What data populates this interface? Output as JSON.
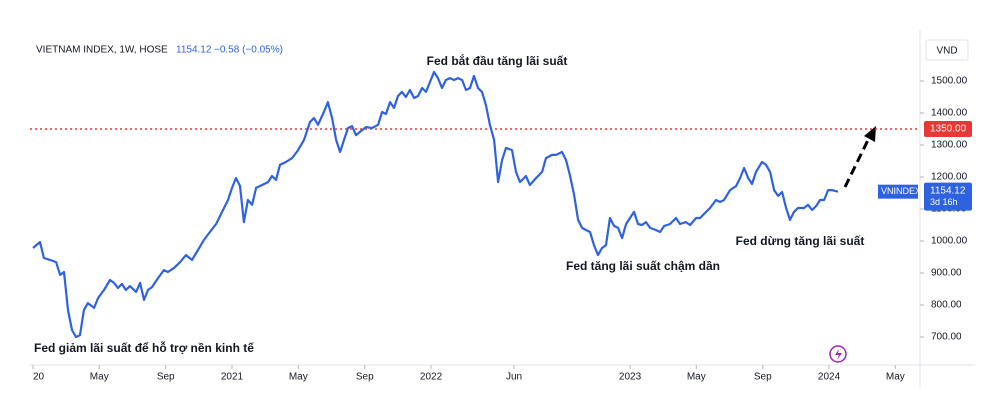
{
  "chart_data": {
    "type": "line",
    "header": {
      "symbol": "VIETNAM INDEX, 1W, HOSE",
      "last": "1154.12",
      "change": "−0.58 (−0.05%)"
    },
    "currency": "VND",
    "annotations": [
      "Fed giảm lãi suất để hỗ trợ nền kinh tế",
      "Fed bắt đầu tăng lãi suất",
      "Fed tăng lãi suất chậm dần",
      "Fed dừng tăng lãi suất"
    ],
    "reference_line": {
      "value": 1350,
      "label": "1350.00",
      "color": "#e53935"
    },
    "price_badge": {
      "name": "VNINDEX",
      "countdown": "3d 16h"
    },
    "xlim": [
      2019.985,
      2024.457
    ],
    "ylim": [
      612.5,
      1628.1
    ],
    "xticks": [
      {
        "value": 2020.0,
        "label": "20"
      },
      {
        "value": 2020.333,
        "label": "May"
      },
      {
        "value": 2020.667,
        "label": "Sep"
      },
      2021,
      {
        "value": 2021.333,
        "label": "May"
      },
      {
        "value": 2021.667,
        "label": "Sep"
      },
      2022,
      {
        "value": 2022.417,
        "label": "Jun"
      },
      2023,
      {
        "value": 2023.333,
        "label": "May"
      },
      {
        "value": 2023.667,
        "label": "Sep"
      },
      2024,
      {
        "value": 2024.333,
        "label": "May"
      }
    ],
    "yticks": [
      {
        "value": 700,
        "label": "700.00"
      },
      {
        "value": 800,
        "label": "800.00"
      },
      {
        "value": 900,
        "label": "900.00"
      },
      {
        "value": 1000,
        "label": "1000.00"
      },
      {
        "value": 1100,
        "label": "1100.00"
      },
      {
        "value": 1200,
        "label": "1200.00"
      },
      {
        "value": 1300,
        "label": "1300.00"
      },
      {
        "value": 1400,
        "label": "1400.00"
      },
      {
        "value": 1500,
        "label": "1500.00"
      }
    ],
    "x": [
      2020.0,
      2020.035,
      2020.055,
      2020.085,
      2020.116,
      2020.136,
      2020.156,
      2020.176,
      2020.196,
      2020.216,
      2020.236,
      2020.256,
      2020.276,
      2020.307,
      2020.327,
      2020.357,
      2020.387,
      2020.407,
      2020.427,
      2020.447,
      2020.467,
      2020.487,
      2020.518,
      2020.538,
      2020.558,
      2020.578,
      2020.598,
      2020.628,
      2020.658,
      2020.678,
      2020.709,
      2020.739,
      2020.769,
      2020.799,
      2020.829,
      2020.859,
      2020.889,
      2020.92,
      2020.95,
      2020.98,
      2021.0,
      2021.02,
      2021.04,
      2021.06,
      2021.08,
      2021.101,
      2021.121,
      2021.151,
      2021.181,
      2021.201,
      2021.221,
      2021.241,
      2021.271,
      2021.302,
      2021.332,
      2021.362,
      2021.392,
      2021.412,
      2021.432,
      2021.462,
      2021.482,
      2021.503,
      2021.523,
      2021.543,
      2021.563,
      2021.583,
      2021.603,
      2021.623,
      2021.643,
      2021.673,
      2021.704,
      2021.734,
      2021.754,
      2021.774,
      2021.794,
      2021.814,
      2021.834,
      2021.854,
      2021.874,
      2021.894,
      2021.915,
      2021.935,
      2021.955,
      2021.975,
      2021.995,
      2022.015,
      2022.035,
      2022.055,
      2022.075,
      2022.095,
      2022.116,
      2022.136,
      2022.156,
      2022.176,
      2022.196,
      2022.216,
      2022.236,
      2022.256,
      2022.276,
      2022.296,
      2022.317,
      2022.337,
      2022.357,
      2022.377,
      2022.407,
      2022.427,
      2022.447,
      2022.477,
      2022.497,
      2022.528,
      2022.558,
      2022.578,
      2022.608,
      2022.628,
      2022.658,
      2022.678,
      2022.698,
      2022.719,
      2022.739,
      2022.759,
      2022.779,
      2022.799,
      2022.819,
      2022.839,
      2022.859,
      2022.879,
      2022.899,
      2022.92,
      2022.94,
      2022.96,
      2022.98,
      2023.0,
      2023.02,
      2023.04,
      2023.06,
      2023.08,
      2023.101,
      2023.131,
      2023.151,
      2023.171,
      2023.201,
      2023.231,
      2023.251,
      2023.281,
      2023.302,
      2023.332,
      2023.352,
      2023.382,
      2023.402,
      2023.432,
      2023.452,
      2023.472,
      2023.503,
      2023.533,
      2023.553,
      2023.573,
      2023.593,
      2023.613,
      2023.633,
      2023.663,
      2023.683,
      2023.704,
      2023.724,
      2023.744,
      2023.764,
      2023.784,
      2023.804,
      2023.824,
      2023.844,
      2023.874,
      2023.894,
      2023.915,
      2023.935,
      2023.955,
      2023.975,
      2023.995,
      2024.015,
      2024.045
    ],
    "series": [
      {
        "name": "VIETNAM INDEX",
        "color": "#2f62e0",
        "values": [
          978,
          997,
          947,
          941,
          934,
          894,
          903,
          784,
          722,
          700,
          706,
          784,
          806,
          791,
          822,
          847,
          878,
          869,
          853,
          866,
          847,
          859,
          841,
          869,
          816,
          847,
          856,
          884,
          909,
          903,
          916,
          934,
          956,
          941,
          972,
          1003,
          1028,
          1053,
          1091,
          1128,
          1166,
          1197,
          1172,
          1059,
          1128,
          1113,
          1166,
          1175,
          1184,
          1203,
          1191,
          1238,
          1247,
          1259,
          1284,
          1316,
          1372,
          1384,
          1363,
          1403,
          1434,
          1384,
          1316,
          1278,
          1316,
          1353,
          1359,
          1331,
          1341,
          1356,
          1353,
          1363,
          1403,
          1397,
          1434,
          1416,
          1453,
          1466,
          1450,
          1472,
          1447,
          1453,
          1478,
          1466,
          1497,
          1528,
          1509,
          1478,
          1503,
          1509,
          1503,
          1509,
          1503,
          1472,
          1478,
          1516,
          1478,
          1466,
          1425,
          1363,
          1316,
          1184,
          1253,
          1291,
          1284,
          1216,
          1184,
          1203,
          1175,
          1197,
          1216,
          1259,
          1269,
          1269,
          1278,
          1253,
          1206,
          1144,
          1066,
          1041,
          1034,
          1028,
          987,
          956,
          978,
          987,
          1072,
          1047,
          1041,
          1009,
          1053,
          1072,
          1091,
          1053,
          1050,
          1059,
          1041,
          1034,
          1028,
          1047,
          1053,
          1072,
          1053,
          1059,
          1050,
          1072,
          1072,
          1091,
          1103,
          1128,
          1122,
          1128,
          1159,
          1172,
          1197,
          1228,
          1197,
          1178,
          1216,
          1247,
          1238,
          1216,
          1159,
          1141,
          1153,
          1103,
          1066,
          1091,
          1103,
          1103,
          1113,
          1097,
          1109,
          1128,
          1128,
          1159,
          1159,
          1154.12
        ]
      }
    ]
  }
}
